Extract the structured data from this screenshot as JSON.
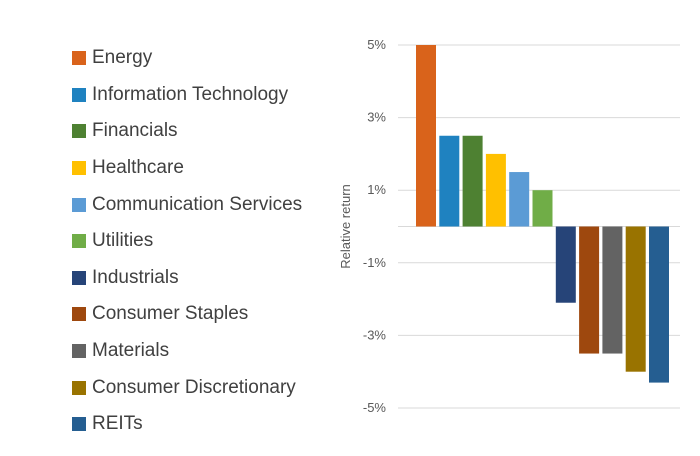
{
  "chart_data": {
    "type": "bar",
    "title": "",
    "xlabel": "",
    "ylabel": "Relative return",
    "ylim": [
      -5,
      5
    ],
    "yticks": [
      5,
      3,
      1,
      -1,
      -3,
      -5
    ],
    "ytick_labels": [
      "5%",
      "3%",
      "1%",
      "-1%",
      "-3%",
      "-5%"
    ],
    "grid": true,
    "legend_position": "left",
    "categories": [
      "Energy",
      "Information Technology",
      "Financials",
      "Healthcare",
      "Communication Services",
      "Utilities",
      "Industrials",
      "Consumer Staples",
      "Materials",
      "Consumer Discretionary",
      "REITs"
    ],
    "values": [
      5.0,
      2.5,
      2.5,
      2.0,
      1.5,
      1.0,
      -2.1,
      -3.5,
      -3.5,
      -4.0,
      -4.3
    ],
    "colors": [
      "#D9631B",
      "#1F82C0",
      "#4E8132",
      "#FFC000",
      "#5B9BD5",
      "#70AD47",
      "#264478",
      "#9E480E",
      "#636363",
      "#997300",
      "#255E91"
    ]
  }
}
